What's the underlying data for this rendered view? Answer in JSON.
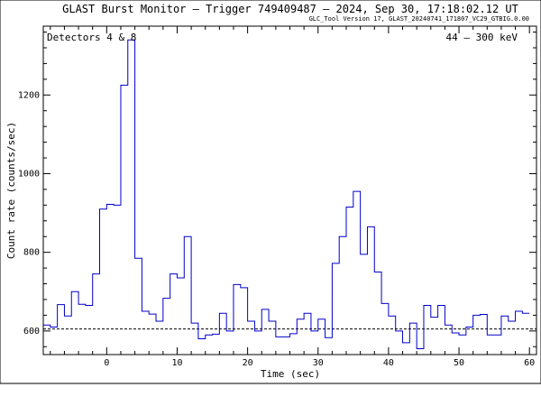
{
  "chart_data": {
    "type": "line",
    "step": true,
    "title": "GLAST Burst Monitor  –  Trigger 749409487  –  2024, Sep 30, 17:18:02.12 UT",
    "subtitle": "GLC_Tool Version 17, GLAST_20240741_171807_VC29_GTBIG.0.00",
    "xlabel": "Time (sec)",
    "ylabel": "Count rate (counts/sec)",
    "annotation_left": "Detectors 4 & 8",
    "annotation_right": "44 – 300 keV",
    "xlim": [
      -9,
      61
    ],
    "ylim": [
      540,
      1375
    ],
    "xticks": [
      0,
      10,
      20,
      30,
      40,
      50,
      60
    ],
    "yticks": [
      600,
      800,
      1000,
      1200
    ],
    "grid": false,
    "background_level": 605,
    "colors": {
      "series": "#0000cc",
      "background": "#000000"
    },
    "series": [
      {
        "bin_start": -9,
        "bin_width": 1,
        "values": [
          615,
          610,
          667,
          638,
          700,
          668,
          665,
          745,
          910,
          922,
          920,
          1225,
          1340,
          785,
          650,
          643,
          625,
          683,
          745,
          735,
          840,
          620,
          580,
          590,
          592,
          645,
          600,
          718,
          710,
          625,
          600,
          655,
          625,
          585,
          585,
          593,
          630,
          645,
          600,
          630,
          583,
          772,
          840,
          915,
          955,
          795,
          865,
          750,
          670,
          638,
          600,
          570,
          620,
          555,
          665,
          635,
          665,
          615,
          595,
          590,
          610,
          640,
          642,
          590,
          590,
          638,
          625,
          650,
          645
        ]
      }
    ]
  }
}
